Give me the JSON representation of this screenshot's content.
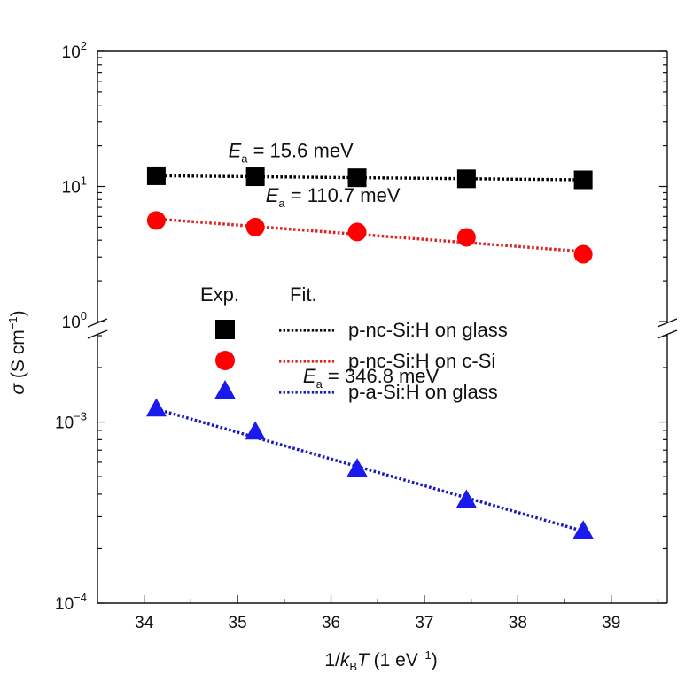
{
  "chart_data": {
    "type": "scatter",
    "title": "",
    "xlabel": {
      "prefix": "1/",
      "k": "k",
      "k_sub": "B",
      "T": "T",
      "unit": " (1 eV",
      "unit_sup": "−1",
      "close": ")"
    },
    "ylabel": {
      "sigma": "σ",
      "unit": " (S cm",
      "unit_sup": "−1",
      "close": ")"
    },
    "xlim": [
      33.5,
      39.6
    ],
    "x_ticks": [
      34,
      35,
      36,
      37,
      38,
      39
    ],
    "y_axis_break": true,
    "y_upper_range": [
      1,
      100
    ],
    "y_lower_range": [
      0.0001,
      0.003
    ],
    "y_ticks": [
      {
        "value": 100,
        "base": "10",
        "exp": "2"
      },
      {
        "value": 10,
        "base": "10",
        "exp": "1"
      },
      {
        "value": 1,
        "base": "10",
        "exp": "0"
      },
      {
        "value": 0.001,
        "base": "10",
        "exp": "-3"
      },
      {
        "value": 0.0001,
        "base": "10",
        "exp": "-4"
      }
    ],
    "legend": {
      "exp_header": "Exp.",
      "fit_header": "Fit."
    },
    "series": [
      {
        "name": "p-nc-Si:H on glass",
        "marker": "square",
        "color": "#000000",
        "fit_color": "#000000",
        "x": [
          34.13,
          35.19,
          36.28,
          37.45,
          38.7
        ],
        "y": [
          12.0,
          11.8,
          11.6,
          11.4,
          11.2
        ],
        "fit_y": [
          12.0,
          11.2
        ],
        "Ea": "15.6 meV"
      },
      {
        "name": "p-nc-Si:H on c-Si",
        "marker": "circle",
        "color": "#ff0000",
        "fit_color": "#dd2222",
        "x": [
          34.13,
          35.19,
          36.28,
          37.45,
          38.7
        ],
        "y": [
          5.6,
          5.0,
          4.6,
          4.2,
          3.15
        ],
        "fit_y": [
          5.75,
          3.3
        ],
        "Ea": "110.7 meV"
      },
      {
        "name": "p-a-Si:H on glass",
        "marker": "triangle",
        "color": "#1a1aee",
        "fit_color": "#1a1ab8",
        "x": [
          34.13,
          35.19,
          36.28,
          37.45,
          38.7
        ],
        "y": [
          0.00118,
          0.00088,
          0.00055,
          0.00037,
          0.00025
        ],
        "fit_y": [
          0.00118,
          0.00025
        ],
        "Ea": "346.8 meV"
      }
    ],
    "annotations": [
      {
        "series": 0,
        "E": "E",
        "sub": "a",
        "text": " = 15.6 meV",
        "x": 34.9,
        "y": 16.5
      },
      {
        "series": 1,
        "E": "E",
        "sub": "a",
        "text": " = 110.7 meV",
        "x": 35.3,
        "y": 7.7
      },
      {
        "series": 2,
        "E": "E",
        "sub": "a",
        "text": " = 346.8 meV",
        "x": 35.7,
        "y": 0.00165
      }
    ]
  }
}
